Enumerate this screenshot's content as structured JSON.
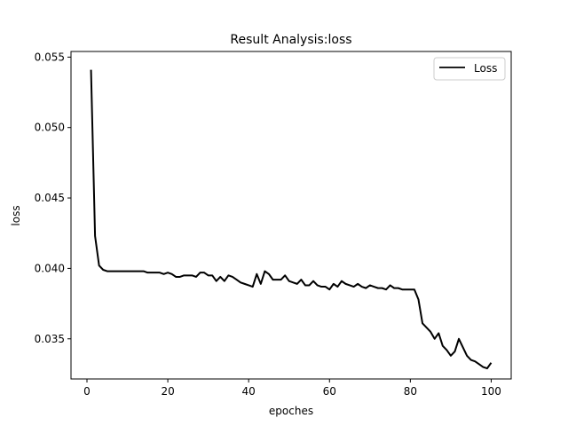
{
  "chart_data": {
    "type": "line",
    "title": "Result Analysis:loss",
    "xlabel": "epoches",
    "ylabel": "loss",
    "xlim": [
      -3.95,
      104.95
    ],
    "ylim": [
      0.03215,
      0.0554
    ],
    "xticks": [
      0,
      20,
      40,
      60,
      80,
      100
    ],
    "yticks": [
      0.035,
      0.04,
      0.045,
      0.05,
      0.055
    ],
    "ytick_labels": [
      "0.035",
      "0.040",
      "0.045",
      "0.050",
      "0.055"
    ],
    "grid": false,
    "legend_position": "upper-right",
    "series": [
      {
        "name": "Loss",
        "color": "#000000",
        "x": [
          1,
          2,
          3,
          4,
          5,
          6,
          7,
          8,
          9,
          10,
          11,
          12,
          13,
          14,
          15,
          16,
          17,
          18,
          19,
          20,
          21,
          22,
          23,
          24,
          25,
          26,
          27,
          28,
          29,
          30,
          31,
          32,
          33,
          34,
          35,
          36,
          37,
          38,
          39,
          40,
          41,
          42,
          43,
          44,
          45,
          46,
          47,
          48,
          49,
          50,
          51,
          52,
          53,
          54,
          55,
          56,
          57,
          58,
          59,
          60,
          61,
          62,
          63,
          64,
          65,
          66,
          67,
          68,
          69,
          70,
          71,
          72,
          73,
          74,
          75,
          76,
          77,
          78,
          79,
          80,
          81,
          82,
          83,
          84,
          85,
          86,
          87,
          88,
          89,
          90,
          91,
          92,
          93,
          94,
          95,
          96,
          97,
          98,
          99,
          100
        ],
        "y": [
          0.0541,
          0.0423,
          0.0402,
          0.0399,
          0.0398,
          0.0398,
          0.0398,
          0.0398,
          0.0398,
          0.0398,
          0.0398,
          0.0398,
          0.0398,
          0.0398,
          0.0397,
          0.0397,
          0.0397,
          0.0397,
          0.0396,
          0.0397,
          0.0396,
          0.0394,
          0.0394,
          0.0395,
          0.0395,
          0.0395,
          0.0394,
          0.0397,
          0.0397,
          0.0395,
          0.0395,
          0.0391,
          0.0394,
          0.0391,
          0.0395,
          0.0394,
          0.0392,
          0.039,
          0.0389,
          0.0388,
          0.0387,
          0.0396,
          0.0389,
          0.0398,
          0.0396,
          0.0392,
          0.0392,
          0.0392,
          0.0395,
          0.0391,
          0.039,
          0.0389,
          0.0392,
          0.0388,
          0.0388,
          0.0391,
          0.0388,
          0.0387,
          0.0387,
          0.0385,
          0.0389,
          0.0387,
          0.0391,
          0.0389,
          0.0388,
          0.0387,
          0.0389,
          0.0387,
          0.0386,
          0.0388,
          0.0387,
          0.0386,
          0.0386,
          0.0385,
          0.0388,
          0.0386,
          0.0386,
          0.0385,
          0.0385,
          0.0385,
          0.0385,
          0.0378,
          0.0361,
          0.0358,
          0.0355,
          0.035,
          0.0354,
          0.0345,
          0.0342,
          0.0338,
          0.0341,
          0.035,
          0.0344,
          0.0338,
          0.0335,
          0.0334,
          0.0332,
          0.033,
          0.0329,
          0.0333
        ]
      }
    ]
  }
}
